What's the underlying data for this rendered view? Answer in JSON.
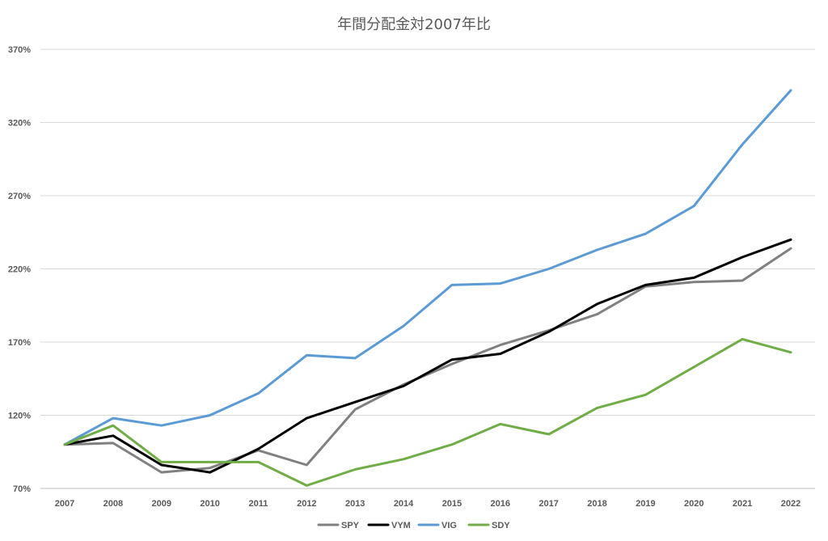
{
  "chart_data": {
    "type": "line",
    "title": "年間分配金対2007年比",
    "xlabel": "",
    "ylabel": "",
    "x": [
      "2007",
      "2008",
      "2009",
      "2010",
      "2011",
      "2012",
      "2013",
      "2014",
      "2015",
      "2016",
      "2017",
      "2018",
      "2019",
      "2020",
      "2021",
      "2022"
    ],
    "ylim": [
      70,
      370
    ],
    "yticks": [
      70,
      120,
      170,
      220,
      270,
      320,
      370
    ],
    "ytick_labels": [
      "70%",
      "120%",
      "170%",
      "220%",
      "270%",
      "320%",
      "370%"
    ],
    "grid": true,
    "legend_position": "bottom",
    "series": [
      {
        "name": "SPY",
        "color": "#808080",
        "values": [
          100,
          101,
          81,
          84,
          96,
          86,
          124,
          141,
          155,
          168,
          178,
          189,
          208,
          211,
          212,
          234
        ]
      },
      {
        "name": "VYM",
        "color": "#000000",
        "values": [
          100,
          106,
          86,
          81,
          97,
          118,
          129,
          140,
          158,
          162,
          177,
          196,
          209,
          214,
          228,
          240
        ]
      },
      {
        "name": "VIG",
        "color": "#5b9bd5",
        "values": [
          100,
          118,
          113,
          120,
          135,
          161,
          159,
          181,
          209,
          210,
          220,
          233,
          244,
          263,
          305,
          342
        ]
      },
      {
        "name": "SDY",
        "color": "#70ad47",
        "values": [
          100,
          113,
          88,
          88,
          88,
          72,
          83,
          90,
          100,
          114,
          107,
          125,
          134,
          153,
          172,
          163
        ]
      }
    ]
  }
}
